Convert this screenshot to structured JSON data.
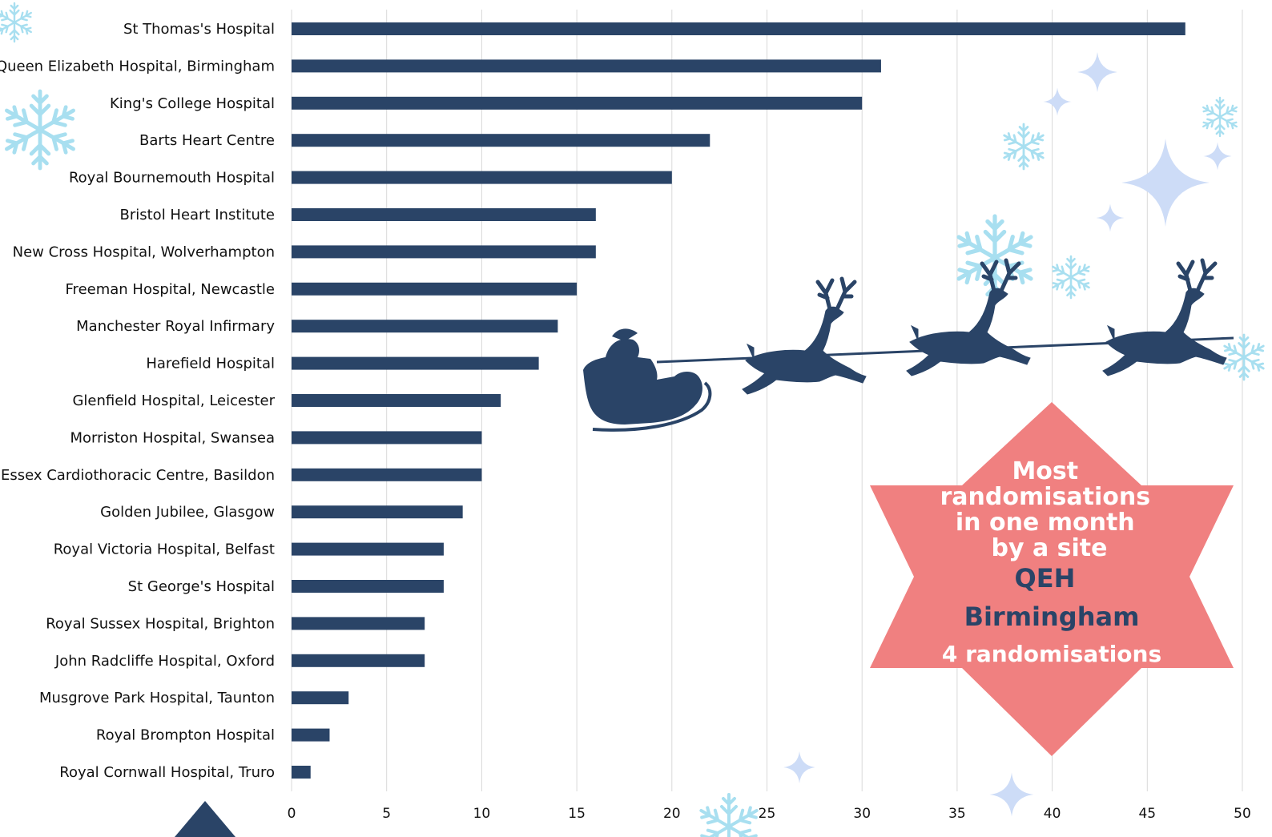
{
  "chart_data": {
    "type": "bar",
    "orientation": "horizontal",
    "categories": [
      "St Thomas's Hospital",
      "Queen Elizabeth Hospital, Birmingham",
      "King's College Hospital",
      "Barts Heart Centre",
      "Royal Bournemouth Hospital",
      "Bristol Heart Institute",
      "New Cross Hospital, Wolverhampton",
      "Freeman Hospital, Newcastle",
      "Manchester Royal Infirmary",
      "Harefield Hospital",
      "Glenfield Hospital, Leicester",
      "Morriston Hospital, Swansea",
      "Essex Cardiothoracic Centre, Basildon",
      "Golden Jubilee, Glasgow",
      "Royal Victoria Hospital, Belfast",
      "St George's Hospital",
      "Royal Sussex Hospital, Brighton",
      "John Radcliffe Hospital, Oxford",
      "Musgrove Park Hospital, Taunton",
      "Royal Brompton Hospital",
      "Royal Cornwall Hospital, Truro"
    ],
    "values": [
      47,
      31,
      30,
      22,
      20,
      16,
      16,
      15,
      14,
      13,
      11,
      10,
      10,
      9,
      8,
      8,
      7,
      7,
      3,
      2,
      1
    ],
    "xlim": [
      0,
      50
    ],
    "xticks": [
      "0",
      "5",
      "10",
      "15",
      "20",
      "25",
      "30",
      "35",
      "40",
      "45",
      "50"
    ],
    "grid": "vertical",
    "bar_color": "#2a4467",
    "grid_color": "#d9d9d9"
  },
  "callout": {
    "line1": "Most",
    "line2": "randomisations",
    "line3": "in one month",
    "line4": "by a site",
    "site_line1": "QEH",
    "site_line2": "Birmingham",
    "count": "4 randomisations",
    "star_color": "#f08080",
    "heading_color": "#ffffff",
    "site_color": "#2a4467"
  },
  "decorations": {
    "snowflake_color": "#a8dff0",
    "sparkle_color": "#cddcf7",
    "sleigh_color": "#2a4467",
    "icons": [
      "snowflake-icon",
      "sparkle-icon",
      "santa-sleigh-icon",
      "reindeer-icon"
    ]
  }
}
